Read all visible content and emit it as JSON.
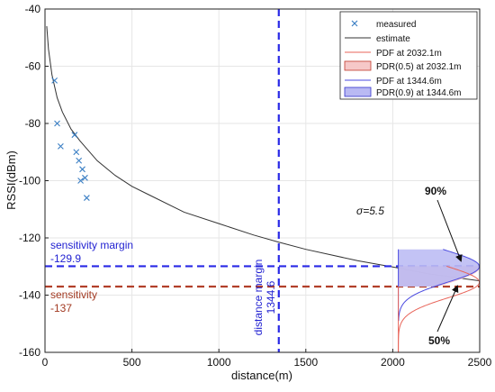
{
  "chart_data": {
    "type": "line",
    "xlabel": "distance(m)",
    "ylabel": "RSSI(dBm)",
    "xlim": [
      0,
      2500
    ],
    "ylim": [
      -160,
      -40
    ],
    "xticks": [
      0,
      500,
      1000,
      1500,
      2000,
      2500
    ],
    "yticks": [
      -160,
      -140,
      -120,
      -100,
      -80,
      -60,
      -40
    ],
    "grid": true,
    "legend_position": "top-right",
    "legend": [
      {
        "key": "measured",
        "label": "measured"
      },
      {
        "key": "estimate",
        "label": "estimate"
      },
      {
        "key": "pdf_far",
        "label": "PDF at 2032.1m"
      },
      {
        "key": "pdr_far",
        "label": "PDR(0.5) at 2032.1m"
      },
      {
        "key": "pdf_near",
        "label": "PDF at 1344.6m"
      },
      {
        "key": "pdr_near",
        "label": "PDR(0.9) at 1344.6m"
      }
    ],
    "colors": {
      "measured": "#3b7fc4",
      "estimate": "#333333",
      "pdf_far": "#e8655a",
      "pdr_far_fill": "#f6c8c8",
      "pdr_far_edge": "#c0392b",
      "pdf_near": "#4a4ae0",
      "pdr_near_fill": "#b9b9f3",
      "pdr_near_edge": "#3333cc",
      "margin_line": "#2929e6",
      "sensitivity_line": "#b2402a",
      "arrow": "#111111"
    },
    "measured": {
      "x": [
        55,
        70,
        90,
        170,
        180,
        195,
        205,
        215,
        230,
        240
      ],
      "y": [
        -65,
        -80,
        -88,
        -84,
        -90,
        -93,
        -100,
        -96,
        -99,
        -106
      ]
    },
    "estimate": {
      "x": [
        10,
        20,
        40,
        70,
        100,
        150,
        200,
        300,
        400,
        500,
        600,
        800,
        1000,
        1200,
        1344.6,
        1500,
        1800,
        2032.1,
        2200,
        2500
      ],
      "y": [
        -46,
        -54,
        -63,
        -71,
        -76,
        -82,
        -86,
        -93,
        -98,
        -102,
        -105,
        -111,
        -115,
        -119,
        -121.5,
        -124,
        -128,
        -130.5,
        -132.5,
        -135
      ]
    },
    "sigma_label": "σ=5.5",
    "reference_lines": {
      "sensitivity": {
        "value": -137,
        "label": "sensitivity",
        "value_label": "-137"
      },
      "sensitivity_margin": {
        "value": -129.9,
        "label": "sensitivity margin",
        "value_label": "-129.9"
      },
      "distance_margin": {
        "value": 1344.6,
        "label": "distance margin",
        "value_label": "1344.6"
      }
    },
    "annotations": [
      {
        "text": "90%",
        "series": "pdr_near"
      },
      {
        "text": "50%",
        "series": "pdr_far"
      }
    ],
    "pdf_overlays": {
      "base_x": 2032.1,
      "scale": 460,
      "sigma": 5.5,
      "near": {
        "mean": -121.5,
        "threshold": -137,
        "y_range": [
          -149,
          -124
        ]
      },
      "far": {
        "mean": -130.5,
        "threshold": -137,
        "y_range": [
          -160,
          -140
        ]
      }
    }
  }
}
